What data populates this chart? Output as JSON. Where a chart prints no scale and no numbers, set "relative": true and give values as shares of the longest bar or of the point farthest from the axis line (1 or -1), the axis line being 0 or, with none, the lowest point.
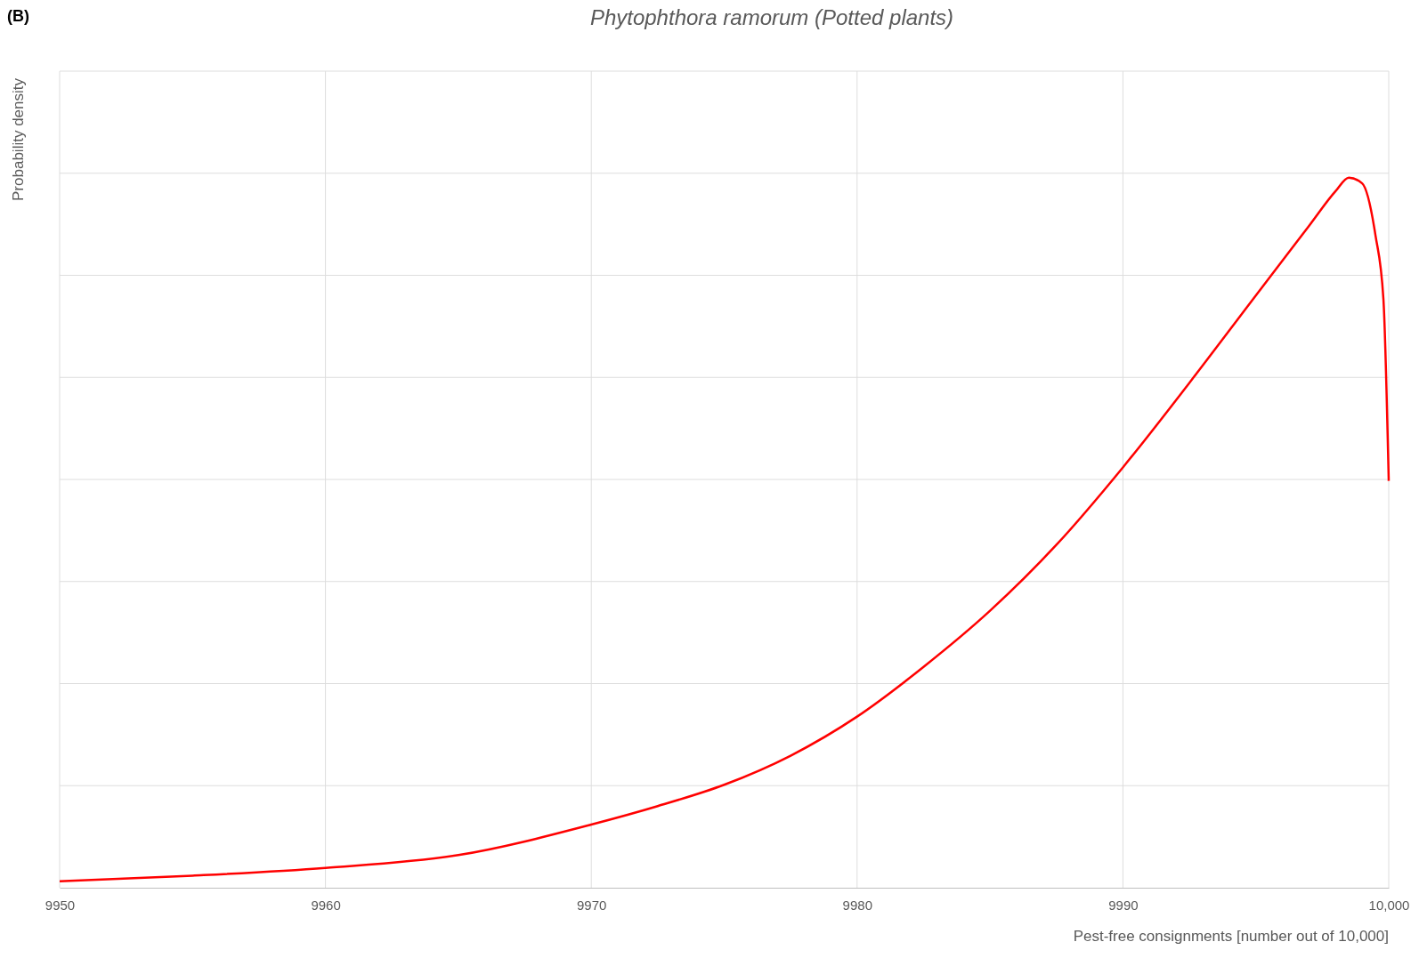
{
  "chart_data": {
    "type": "line",
    "title": "Phytophthora ramorum (Potted plants)",
    "xlabel": "Pest-free consignments [number out of 10,000]",
    "ylabel": "Probability density",
    "annotations": [
      "(B)"
    ],
    "relative": true,
    "grid": true,
    "xlim": [
      9950,
      10000
    ],
    "xticks": [
      9950,
      9960,
      9970,
      9980,
      9990,
      {
        "value": 10000,
        "label": "10,000"
      }
    ],
    "series": [
      {
        "color": "#ff0000",
        "x": [
          9950,
          9955,
          9960,
          9965,
          9970,
          9972.5,
          9975,
          9977.5,
          9980,
          9982.5,
          9985,
          9987.5,
          9990,
          9992.5,
          9995,
          9997,
          9998,
          9998.5,
          9999,
          9999.5,
          9999.8,
          10000
        ],
        "values": [
          0.009,
          0.017,
          0.028,
          0.046,
          0.089,
          0.115,
          0.145,
          0.186,
          0.241,
          0.311,
          0.39,
          0.483,
          0.592,
          0.711,
          0.834,
          0.932,
          0.981,
          1,
          0.992,
          0.919,
          0.829,
          0.573
        ]
      }
    ]
  }
}
